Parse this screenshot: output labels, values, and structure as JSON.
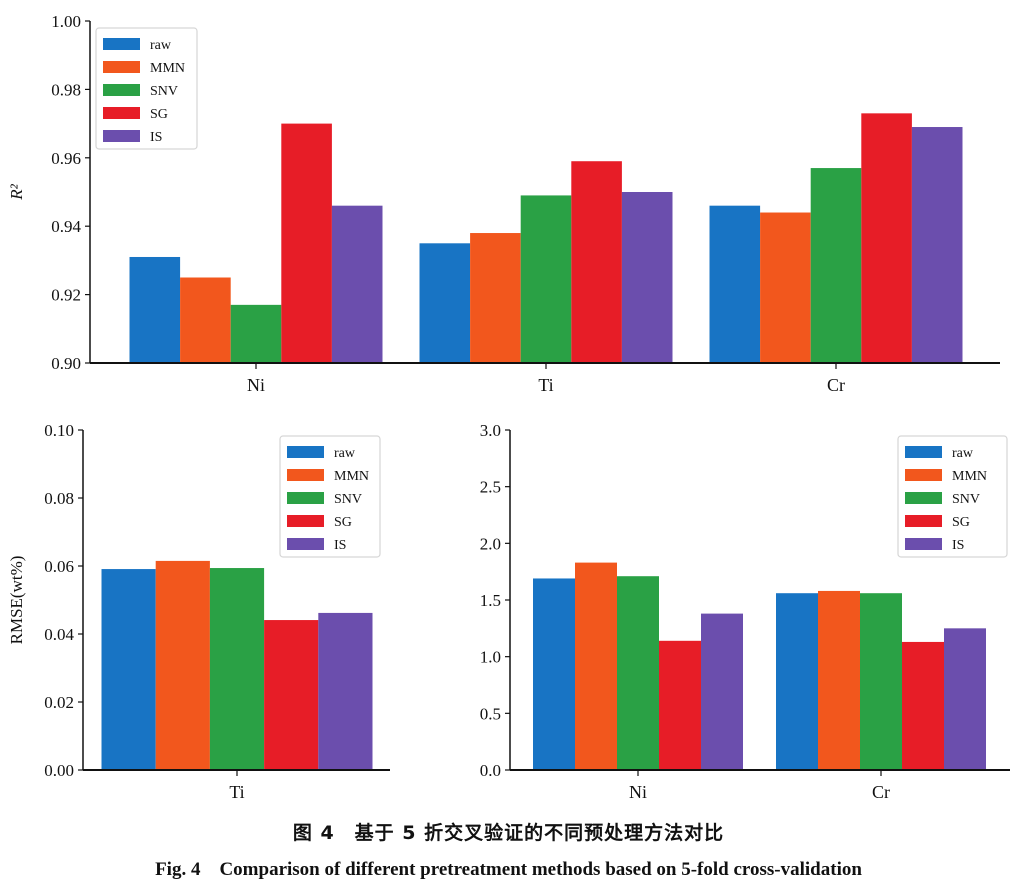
{
  "caption": {
    "cn": "图 4　基于 5 折交叉验证的不同预处理方法对比",
    "en": "Fig. 4　Comparison of different pretreatment methods based on 5-fold cross-validation"
  },
  "colors": {
    "raw": "#1874c4",
    "MMN": "#f2571d",
    "SNV": "#2aa145",
    "SG": "#e71d27",
    "IS": "#6b4ead"
  },
  "chart_data": [
    {
      "type": "bar",
      "ylabel": "R²",
      "ylim": [
        0.9,
        1.0
      ],
      "yticks": [
        "0.90",
        "0.92",
        "0.94",
        "0.96",
        "0.98",
        "1.00"
      ],
      "categories": [
        "Ni",
        "Ti",
        "Cr"
      ],
      "legend": "top-left",
      "series": [
        {
          "name": "raw",
          "values": [
            0.931,
            0.935,
            0.946
          ]
        },
        {
          "name": "MMN",
          "values": [
            0.925,
            0.938,
            0.944
          ]
        },
        {
          "name": "SNV",
          "values": [
            0.917,
            0.949,
            0.957
          ]
        },
        {
          "name": "SG",
          "values": [
            0.97,
            0.959,
            0.973
          ]
        },
        {
          "name": "IS",
          "values": [
            0.946,
            0.95,
            0.969
          ]
        }
      ]
    },
    {
      "type": "bar",
      "ylabel": "RMSE(wt%)",
      "ylim": [
        0,
        0.1
      ],
      "yticks": [
        "0.00",
        "0.02",
        "0.04",
        "0.06",
        "0.08",
        "0.10"
      ],
      "categories": [
        "Ti"
      ],
      "legend": "top-right",
      "series": [
        {
          "name": "raw",
          "values": [
            0.0591
          ]
        },
        {
          "name": "MMN",
          "values": [
            0.0615
          ]
        },
        {
          "name": "SNV",
          "values": [
            0.0594
          ]
        },
        {
          "name": "SG",
          "values": [
            0.0441
          ]
        },
        {
          "name": "IS",
          "values": [
            0.0462
          ]
        }
      ]
    },
    {
      "type": "bar",
      "ylabel": "",
      "ylim": [
        0,
        3.0
      ],
      "yticks": [
        "0.0",
        "0.5",
        "1.0",
        "1.5",
        "2.0",
        "2.5",
        "3.0"
      ],
      "categories": [
        "Ni",
        "Cr"
      ],
      "legend": "top-right",
      "series": [
        {
          "name": "raw",
          "values": [
            1.69,
            1.56
          ]
        },
        {
          "name": "MMN",
          "values": [
            1.83,
            1.58
          ]
        },
        {
          "name": "SNV",
          "values": [
            1.71,
            1.56
          ]
        },
        {
          "name": "SG",
          "values": [
            1.14,
            1.13
          ]
        },
        {
          "name": "IS",
          "values": [
            1.38,
            1.25
          ]
        }
      ]
    }
  ]
}
